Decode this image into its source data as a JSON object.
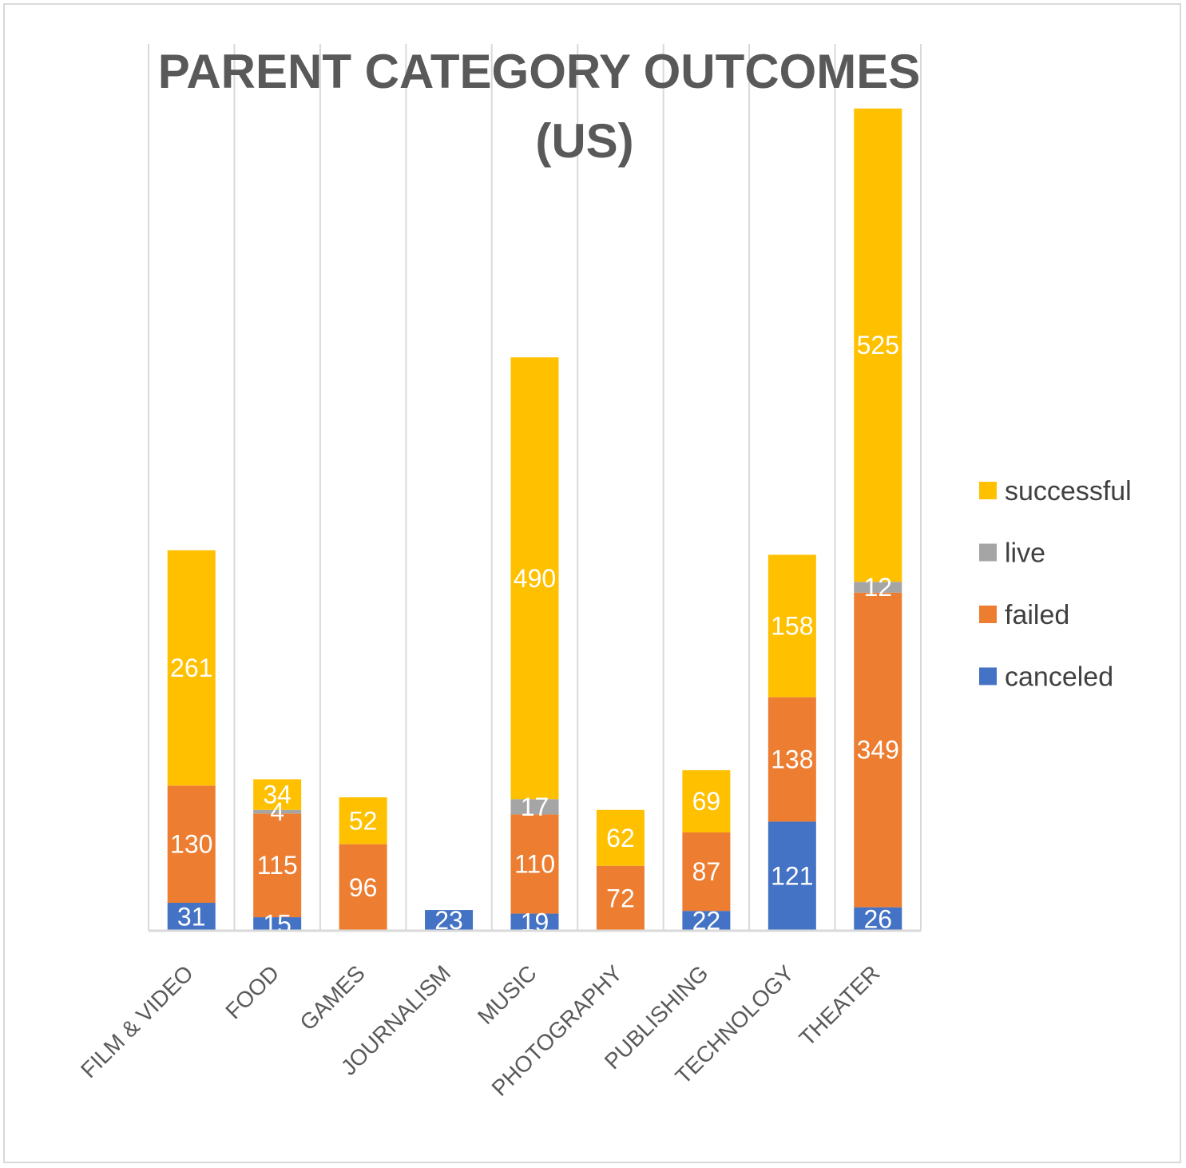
{
  "chart_data": {
    "type": "bar",
    "stacked": true,
    "title": "PARENT CATEGORY OUTCOMES (US)",
    "title_lines": [
      "PARENT CATEGORY OUTCOMES",
      "(US)"
    ],
    "xlabel": "",
    "ylabel": "",
    "categories": [
      "FILM & VIDEO",
      "FOOD",
      "GAMES",
      "JOURNALISM",
      "MUSIC",
      "PHOTOGRAPHY",
      "PUBLISHING",
      "TECHNOLOGY",
      "THEATER"
    ],
    "series": [
      {
        "name": "canceled",
        "color": "#4472c4",
        "values": [
          31,
          15,
          0,
          23,
          19,
          0,
          22,
          121,
          26
        ]
      },
      {
        "name": "failed",
        "color": "#ed7d31",
        "values": [
          130,
          115,
          96,
          0,
          110,
          72,
          87,
          138,
          349
        ]
      },
      {
        "name": "live",
        "color": "#a5a5a5",
        "values": [
          0,
          4,
          0,
          0,
          17,
          0,
          0,
          0,
          12
        ]
      },
      {
        "name": "successful",
        "color": "#ffc000",
        "values": [
          261,
          34,
          52,
          0,
          490,
          62,
          69,
          158,
          525
        ]
      }
    ],
    "legend_order": [
      "successful",
      "live",
      "failed",
      "canceled"
    ],
    "legend_position": "right",
    "ylim": [
      0,
      920
    ],
    "grid": "vertical",
    "data_labels": true
  }
}
